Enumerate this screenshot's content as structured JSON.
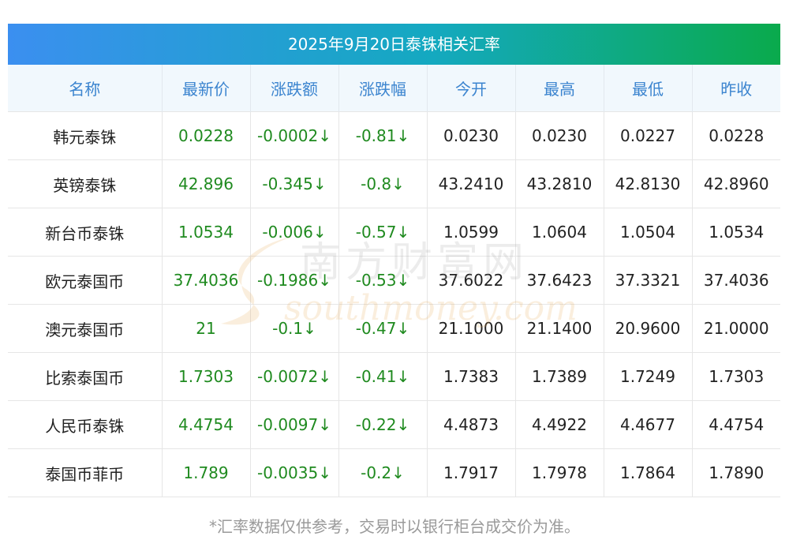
{
  "title": "2025年9月20日泰铢相关汇率",
  "columns": [
    "名称",
    "最新价",
    "涨跌额",
    "涨跌幅",
    "今开",
    "最高",
    "最低",
    "昨收"
  ],
  "rows": [
    [
      "韩元泰铢",
      "0.0228",
      "-0.0002↓",
      "-0.81↓",
      "0.0230",
      "0.0230",
      "0.0227",
      "0.0228"
    ],
    [
      "英镑泰铢",
      "42.896",
      "-0.345↓",
      "-0.8↓",
      "43.2410",
      "43.2810",
      "42.8130",
      "42.8960"
    ],
    [
      "新台币泰铢",
      "1.0534",
      "-0.006↓",
      "-0.57↓",
      "1.0599",
      "1.0604",
      "1.0504",
      "1.0534"
    ],
    [
      "欧元泰国币",
      "37.4036",
      "-0.1986↓",
      "-0.53↓",
      "37.6022",
      "37.6423",
      "37.3321",
      "37.4036"
    ],
    [
      "澳元泰国币",
      "21",
      "-0.1↓",
      "-0.47↓",
      "21.1000",
      "21.1400",
      "20.9600",
      "21.0000"
    ],
    [
      "比索泰国币",
      "1.7303",
      "-0.0072↓",
      "-0.41↓",
      "1.7383",
      "1.7389",
      "1.7249",
      "1.7303"
    ],
    [
      "人民币泰铢",
      "4.4754",
      "-0.0097↓",
      "-0.22↓",
      "4.4873",
      "4.4922",
      "4.4677",
      "4.4754"
    ],
    [
      "泰国币菲币",
      "1.789",
      "-0.0035↓",
      "-0.2↓",
      "1.7917",
      "1.7978",
      "1.7864",
      "1.7890"
    ]
  ],
  "footnote": "*汇率数据仅供参考，交易时以银行柜台成交价为准。",
  "watermark": {
    "cn": "南方财富网",
    "en": "southmoney.com"
  },
  "colors": {
    "header_text": "#3b84cf",
    "header_bg": "#f1f8fd",
    "change_text": "#1f8a1f",
    "title_grad_start": "#3b8ff0",
    "title_grad_end": "#0aaa4c"
  }
}
